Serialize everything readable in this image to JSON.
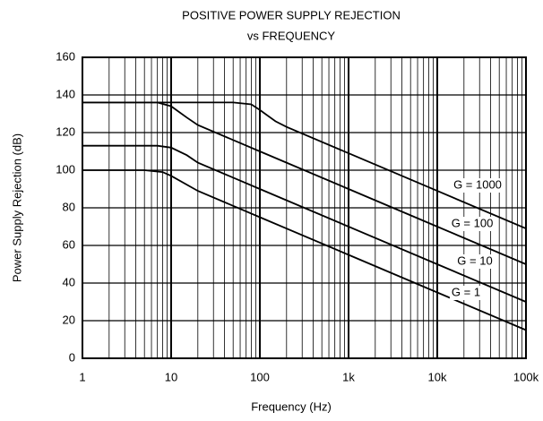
{
  "chart_data": {
    "type": "line",
    "title": "POSITIVE POWER SUPPLY REJECTION",
    "subtitle": "vs FREQUENCY",
    "x_label": "Frequency (Hz)",
    "y_label": "Power Supply Rejection (dB)",
    "log_x": true,
    "grid": true,
    "minor_grid": true,
    "color": "#000000",
    "xlim": [
      1,
      100000
    ],
    "xticks": [
      1,
      10,
      100,
      {
        "value": 1000,
        "label": "1k"
      },
      {
        "value": 10000,
        "label": "10k"
      },
      {
        "value": 100000,
        "label": "100k"
      }
    ],
    "ylim": [
      0,
      160
    ],
    "yticks": [
      0,
      20,
      40,
      60,
      80,
      100,
      120,
      140,
      160
    ],
    "series": [
      {
        "name": "G = 1000",
        "x": [
          1,
          50,
          80,
          100,
          150,
          200,
          1000,
          10000,
          100000
        ],
        "values": [
          136,
          136,
          135,
          132,
          126,
          123,
          109,
          89,
          69
        ]
      },
      {
        "name": "G = 100",
        "x": [
          1,
          7,
          10,
          15,
          20,
          100,
          1000,
          10000,
          100000
        ],
        "values": [
          136,
          136,
          134,
          128,
          124,
          110,
          90,
          70,
          50
        ]
      },
      {
        "name": "G = 10",
        "x": [
          1,
          7,
          10,
          15,
          20,
          100,
          1000,
          10000,
          100000
        ],
        "values": [
          113,
          113,
          112,
          108,
          104,
          90,
          70,
          50,
          30
        ]
      },
      {
        "name": "G = 1",
        "x": [
          1,
          5,
          8,
          10,
          20,
          100,
          1000,
          10000,
          100000
        ],
        "values": [
          100,
          100,
          99,
          97,
          89,
          75,
          55,
          35,
          15
        ]
      }
    ]
  }
}
